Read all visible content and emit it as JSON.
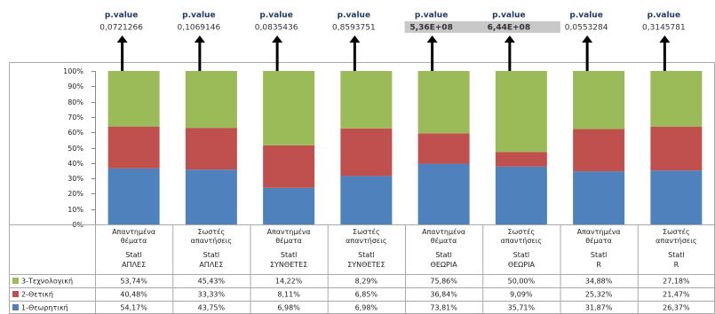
{
  "chart_data": {
    "type": "stacked_percent_bar",
    "annotations": [
      {
        "label": "p.value",
        "value": "0,0721266",
        "highlighted": false
      },
      {
        "label": "p.value",
        "value": "0,1069146",
        "highlighted": false
      },
      {
        "label": "p.value",
        "value": "0,0835436",
        "highlighted": false
      },
      {
        "label": "p.value",
        "value": "0,8593751",
        "highlighted": false
      },
      {
        "label": "p.value",
        "value": "5,36E+08",
        "highlighted": true
      },
      {
        "label": "p.value",
        "value": "6,44E+08",
        "highlighted": true
      },
      {
        "label": "p.value",
        "value": "0,0553284",
        "highlighted": false
      },
      {
        "label": "p.value",
        "value": "0,3145781",
        "highlighted": false
      }
    ],
    "categories": [
      [
        "Απαντημένα θέματα",
        "Statl",
        "ΑΠΛΕΣ"
      ],
      [
        "Σωστές απαντήσεις",
        "Statl",
        "ΑΠΛΕΣ"
      ],
      [
        "Απαντημένα θέματα",
        "Statl",
        "ΣΥΝΘΕΤΕΣ"
      ],
      [
        "Σωστές απαντήσεις",
        "Statl",
        "ΣΥΝΘΕΤΕΣ"
      ],
      [
        "Απαντημένα θέματα",
        "Statl",
        "ΘΕΩΡΙΑ"
      ],
      [
        "Σωστές απαντήσεις",
        "Statl",
        "ΘΕΩΡΙΑ"
      ],
      [
        "Απαντημένα θέματα",
        "Statl",
        "R"
      ],
      [
        "Σωστές απαντήσεις",
        "Statl",
        "R"
      ]
    ],
    "series": [
      {
        "name": "1-Θεωρητική",
        "color": "#4f81bd",
        "values": [
          54.17,
          43.75,
          6.98,
          6.98,
          73.81,
          35.71,
          31.87,
          26.37
        ],
        "value_labels": [
          "54,17%",
          "43,75%",
          "6,98%",
          "6,98%",
          "73,81%",
          "35,71%",
          "31,87%",
          "26,37%"
        ]
      },
      {
        "name": "2-Θετική",
        "color": "#c0504d",
        "values": [
          40.48,
          33.33,
          8.11,
          6.85,
          36.84,
          9.09,
          25.32,
          21.47
        ],
        "value_labels": [
          "40,48%",
          "33,33%",
          "8,11%",
          "6,85%",
          "36,84%",
          "9,09%",
          "25,32%",
          "21,47%"
        ]
      },
      {
        "name": "3-Τεχνολογική",
        "color": "#9bbb59",
        "values": [
          53.74,
          45.43,
          14.22,
          8.29,
          75.86,
          50.0,
          34.88,
          27.18
        ],
        "value_labels": [
          "53,74%",
          "45,43%",
          "14,22%",
          "8,29%",
          "75,86%",
          "50,00%",
          "34,88%",
          "27,18%"
        ]
      }
    ],
    "ylim": [
      0,
      100
    ],
    "yticks": [
      {
        "value": 0,
        "label": "0%"
      },
      {
        "value": 10,
        "label": "10%"
      },
      {
        "value": 20,
        "label": "20%"
      },
      {
        "value": 30,
        "label": "30%"
      },
      {
        "value": 40,
        "label": "40%"
      },
      {
        "value": 50,
        "label": "50%"
      },
      {
        "value": 60,
        "label": "60%"
      },
      {
        "value": 70,
        "label": "70%"
      },
      {
        "value": 80,
        "label": "80%"
      },
      {
        "value": 90,
        "label": "90%"
      },
      {
        "value": 100,
        "label": "100%"
      }
    ]
  }
}
